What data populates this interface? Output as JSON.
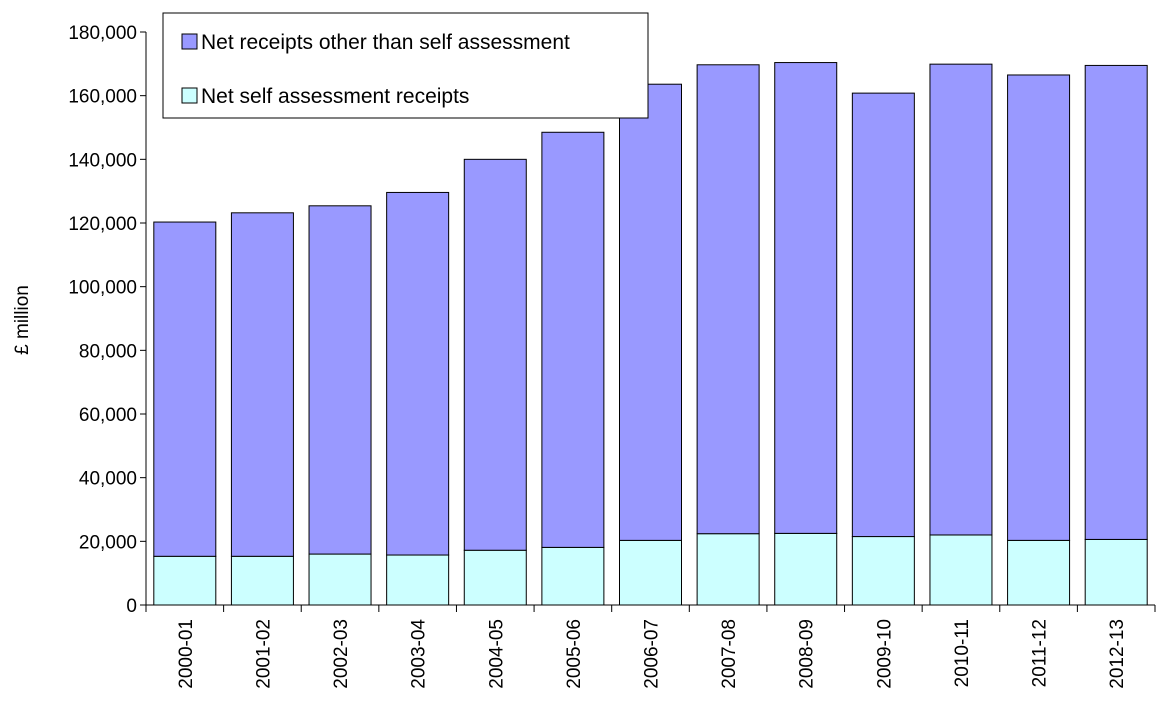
{
  "chart_data": {
    "type": "bar",
    "stacked": true,
    "ylabel": "£ million",
    "xlabel": "",
    "ylim": [
      0,
      180000
    ],
    "ytick_step": 20000,
    "yticks": [
      "0",
      "20,000",
      "40,000",
      "60,000",
      "80,000",
      "100,000",
      "120,000",
      "140,000",
      "160,000",
      "180,000"
    ],
    "grid": false,
    "legend_position": "top-left",
    "categories": [
      "2000-01",
      "2001-02",
      "2002-03",
      "2003-04",
      "2004-05",
      "2005-06",
      "2006-07",
      "2007-08",
      "2008-09",
      "2009-10",
      "2010-11",
      "2011-12",
      "2012-13"
    ],
    "series": [
      {
        "name": "Net self assessment receipts",
        "color": "#CCFFFF",
        "values": [
          15300,
          15300,
          16000,
          15700,
          17200,
          18100,
          20300,
          22400,
          22500,
          21500,
          22000,
          20300,
          20600
        ]
      },
      {
        "name": "Net receipts other than self assessment",
        "color": "#9999FF",
        "values": [
          105000,
          107900,
          109400,
          113900,
          122800,
          130400,
          143300,
          147300,
          147900,
          139300,
          147900,
          146200,
          148900
        ]
      }
    ],
    "legend_order": [
      "Net receipts other than self assessment",
      "Net self assessment receipts"
    ]
  }
}
